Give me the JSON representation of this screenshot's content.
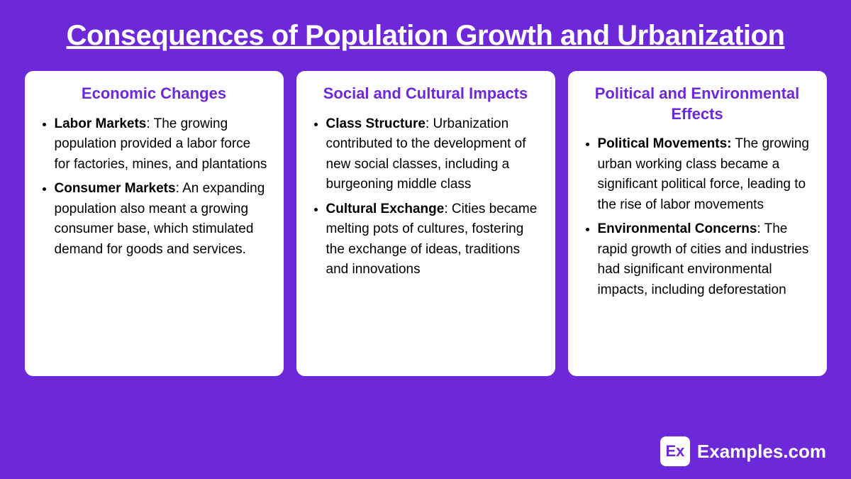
{
  "title": "Consequences of Population Growth and Urbanization",
  "cards": [
    {
      "heading": "Economic Changes",
      "items": [
        {
          "term": "Labor Markets",
          "text": ": The growing population provided a labor force for factories, mines, and plantations"
        },
        {
          "term": "Consumer Markets",
          "text": ": An expanding population also meant a growing consumer base,  which stimulated demand for goods and services."
        }
      ]
    },
    {
      "heading": "Social and Cultural Impacts",
      "items": [
        {
          "term": "Class Structure",
          "text": ": Urbanization contributed to the development of new social classes, including a burgeoning middle class"
        },
        {
          "term": "Cultural Exchange",
          "text": ": Cities became melting pots of cultures, fostering the exchange of ideas, traditions and innovations"
        }
      ]
    },
    {
      "heading": "Political and Environmental Effects",
      "items": [
        {
          "term": "Political Movements:",
          "text": " The growing urban working class became a significant political force, leading to the rise of labor movements"
        },
        {
          "term": "Environmental Concerns",
          "text": ": The rapid growth of cities and industries had significant environmental impacts, including deforestation"
        }
      ]
    }
  ],
  "footer": {
    "logo_abbr": "Ex",
    "logo_text": "Examples.com"
  },
  "colors": {
    "background": "#6d28d9",
    "card_bg": "#ffffff",
    "accent": "#6d28d9",
    "body_text": "#000000",
    "title_text": "#ffffff"
  }
}
